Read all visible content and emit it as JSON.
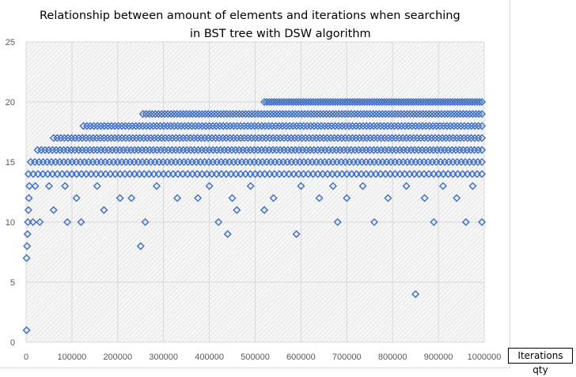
{
  "chart_data": {
    "type": "scatter",
    "title_line1": "Relationship between amount of elements and iterations when searching",
    "title_line2": "in BST tree with DSW algorithm",
    "xlabel": "Iterations qty",
    "ylabel": "",
    "xlim": [
      0,
      1000000
    ],
    "ylim": [
      0,
      25
    ],
    "x_ticks": [
      "0",
      "100000",
      "200000",
      "300000",
      "400000",
      "500000",
      "600000",
      "700000",
      "800000",
      "900000",
      "1000000"
    ],
    "y_ticks": [
      "0",
      "5",
      "10",
      "15",
      "20",
      "25"
    ],
    "grid": true,
    "legend": "none",
    "marker": "open-diamond",
    "colors": {
      "marker": "#4472c4",
      "grid": "#d9d9d9",
      "plot_fill": "#f2f2f2"
    },
    "series": [
      {
        "points": [
          [
            1000,
            1
          ],
          [
            1000,
            7
          ],
          [
            2000,
            8
          ],
          [
            3000,
            9
          ],
          [
            4000,
            10
          ],
          [
            5000,
            11
          ],
          [
            6000,
            12
          ],
          [
            7000,
            13
          ],
          [
            15000,
            10
          ],
          [
            30000,
            10
          ],
          [
            60000,
            11
          ],
          [
            90000,
            10
          ],
          [
            120000,
            10
          ],
          [
            170000,
            11
          ],
          [
            250000,
            8
          ],
          [
            260000,
            10
          ],
          [
            420000,
            10
          ],
          [
            440000,
            9
          ],
          [
            460000,
            11
          ],
          [
            520000,
            11
          ],
          [
            590000,
            9
          ],
          [
            680000,
            10
          ],
          [
            760000,
            10
          ],
          [
            850000,
            4
          ],
          [
            890000,
            10
          ],
          [
            960000,
            10
          ],
          [
            995000,
            10
          ],
          [
            20000,
            13
          ],
          [
            50000,
            13
          ],
          [
            85000,
            13
          ],
          [
            110000,
            12
          ],
          [
            155000,
            13
          ],
          [
            205000,
            12
          ],
          [
            230000,
            12
          ],
          [
            285000,
            13
          ],
          [
            330000,
            12
          ],
          [
            375000,
            12
          ],
          [
            400000,
            13
          ],
          [
            450000,
            12
          ],
          [
            490000,
            13
          ],
          [
            540000,
            12
          ],
          [
            600000,
            13
          ],
          [
            640000,
            12
          ],
          [
            670000,
            13
          ],
          [
            700000,
            12
          ],
          [
            735000,
            13
          ],
          [
            790000,
            12
          ],
          [
            830000,
            13
          ],
          [
            870000,
            12
          ],
          [
            910000,
            13
          ],
          [
            940000,
            12
          ],
          [
            975000,
            13
          ]
        ],
        "bands": [
          {
            "y": 14,
            "x_start": 5000,
            "x_end": 995000,
            "count": 95
          },
          {
            "y": 15,
            "x_start": 10000,
            "x_end": 995000,
            "count": 110
          },
          {
            "y": 16,
            "x_start": 25000,
            "x_end": 995000,
            "count": 120
          },
          {
            "y": 17,
            "x_start": 60000,
            "x_end": 995000,
            "count": 120
          },
          {
            "y": 18,
            "x_start": 125000,
            "x_end": 995000,
            "count": 115
          },
          {
            "y": 19,
            "x_start": 255000,
            "x_end": 995000,
            "count": 110
          },
          {
            "y": 20,
            "x_start": 520000,
            "x_end": 995000,
            "count": 90
          }
        ]
      }
    ]
  }
}
